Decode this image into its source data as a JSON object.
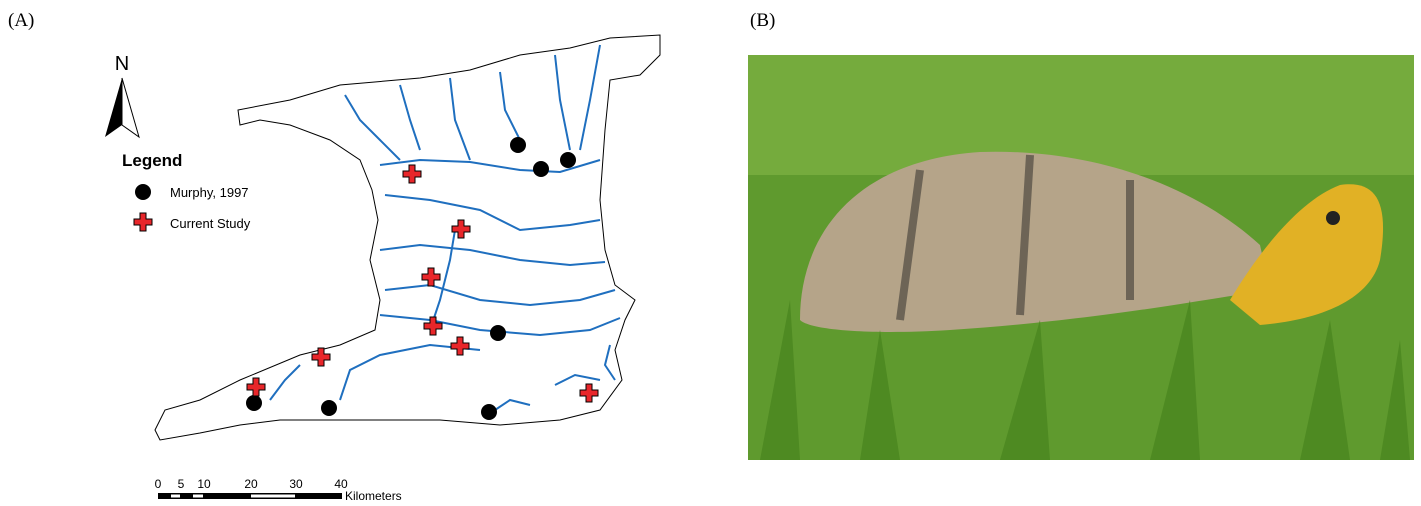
{
  "panels": [
    {
      "label": "(A)"
    },
    {
      "label": "(B)"
    }
  ],
  "map": {
    "north": "N",
    "legend": {
      "title": "Legend",
      "items": [
        {
          "label": "Murphy, 1997"
        },
        {
          "label": "Current Study"
        }
      ]
    },
    "scale": {
      "ticks": [
        "0",
        "5",
        "10",
        "20",
        "30",
        "40"
      ],
      "unit": "Kilometers"
    }
  }
}
